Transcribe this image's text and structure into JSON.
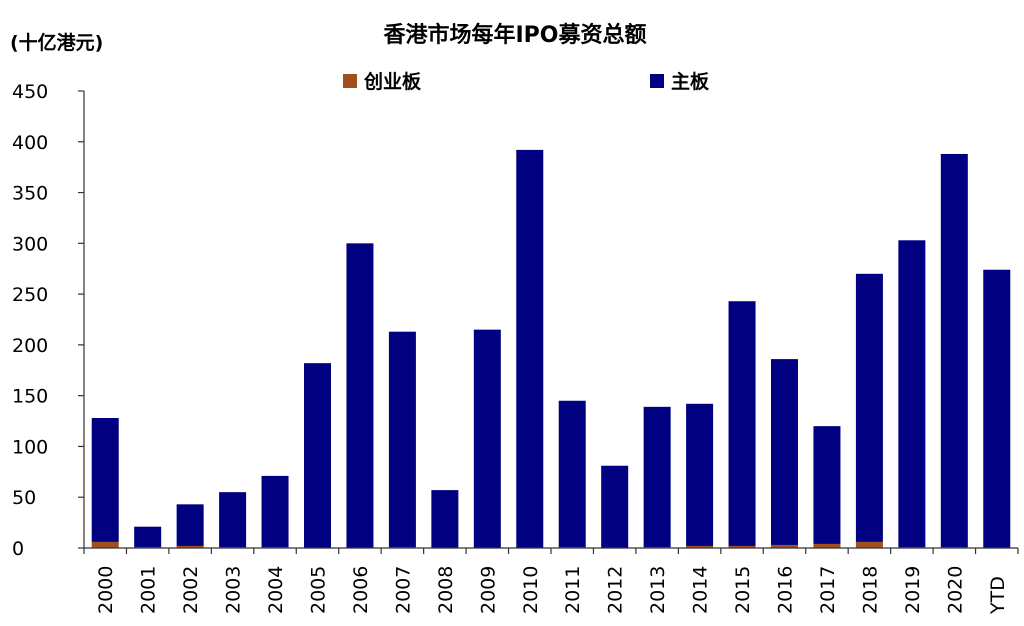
{
  "chart_data": {
    "type": "bar",
    "stacked": true,
    "title": "香港市场每年IPO募资总额",
    "unit_label": "(十亿港元)",
    "categories": [
      "2000",
      "2001",
      "2002",
      "2003",
      "2004",
      "2005",
      "2006",
      "2007",
      "2008",
      "2009",
      "2010",
      "2011",
      "2012",
      "2013",
      "2014",
      "2015",
      "2016",
      "2017",
      "2018",
      "2019",
      "2020",
      "YTD"
    ],
    "series": [
      {
        "name": "创业板",
        "color": "#a0501e",
        "values": [
          6,
          1,
          2,
          1,
          1,
          0,
          0,
          1,
          0,
          0,
          0,
          1,
          0,
          1,
          2,
          2,
          3,
          4,
          6,
          1,
          1,
          0
        ]
      },
      {
        "name": "主板",
        "color": "#000080",
        "values": [
          122,
          20,
          41,
          54,
          70,
          182,
          300,
          212,
          57,
          215,
          392,
          144,
          81,
          138,
          140,
          241,
          183,
          116,
          264,
          302,
          387,
          274
        ]
      }
    ],
    "ylim": [
      0,
      450
    ],
    "yticks": [
      0,
      50,
      100,
      150,
      200,
      250,
      300,
      350,
      400,
      450
    ],
    "grid": false,
    "legend_position": "top"
  }
}
